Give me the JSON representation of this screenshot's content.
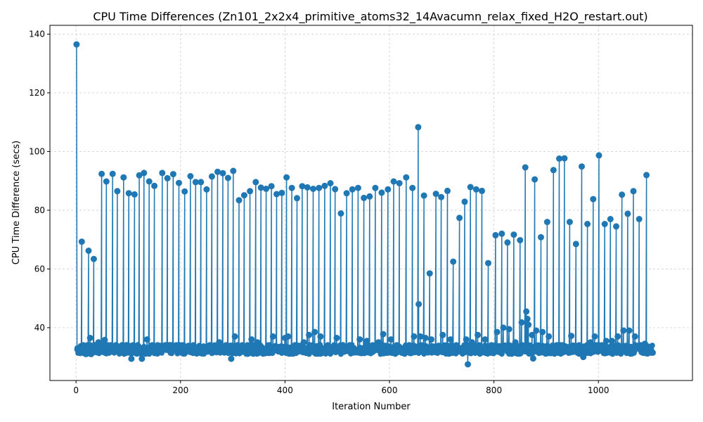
{
  "chart_data": {
    "type": "line",
    "title": "CPU Time Differences (Zn101_2x2x4_primitive_atoms32_14Avacumn_relax_fixed_H2O_restart.out)",
    "xlabel": "Iteration Number",
    "ylabel": "CPU Time Difference (secs)",
    "xlim": [
      -50,
      1180
    ],
    "ylim": [
      22,
      143
    ],
    "xticks": [
      0,
      200,
      400,
      600,
      800,
      1000
    ],
    "yticks": [
      40,
      60,
      80,
      100,
      120,
      140
    ],
    "grid": true,
    "color": "#1f77b4",
    "series": [
      {
        "baseline": 32,
        "points": [
          [
            1,
            136.5
          ],
          [
            3,
            33
          ],
          [
            5,
            32
          ],
          [
            8,
            32.5
          ],
          [
            11,
            69.3
          ],
          [
            14,
            34
          ],
          [
            17,
            33
          ],
          [
            19,
            31
          ],
          [
            22,
            34
          ],
          [
            24,
            66.2
          ],
          [
            27,
            36.5
          ],
          [
            29,
            31
          ],
          [
            32,
            33
          ],
          [
            34,
            63.4
          ],
          [
            37,
            34
          ],
          [
            40,
            33
          ],
          [
            43,
            35
          ],
          [
            46,
            33
          ],
          [
            49,
            92.4
          ],
          [
            52,
            34
          ],
          [
            55,
            35.8
          ],
          [
            58,
            89.8
          ],
          [
            61,
            34
          ],
          [
            63,
            31.5
          ],
          [
            67,
            34
          ],
          [
            70,
            92.4
          ],
          [
            73,
            33
          ],
          [
            76,
            34
          ],
          [
            79,
            86.5
          ],
          [
            82,
            33.5
          ],
          [
            85,
            33
          ],
          [
            88,
            34
          ],
          [
            91,
            91.2
          ],
          [
            94,
            33
          ],
          [
            97,
            33
          ],
          [
            101,
            85.8
          ],
          [
            104,
            33
          ],
          [
            106,
            29.4
          ],
          [
            109,
            34
          ],
          [
            112,
            85.4
          ],
          [
            115,
            33
          ],
          [
            118,
            34
          ],
          [
            121,
            91.9
          ],
          [
            124,
            33
          ],
          [
            126,
            29.4
          ],
          [
            130,
            92.7
          ],
          [
            133,
            33
          ],
          [
            136,
            36
          ],
          [
            140,
            89.8
          ],
          [
            143,
            33
          ],
          [
            146,
            34
          ],
          [
            150,
            88.3
          ],
          [
            153,
            33
          ],
          [
            156,
            34
          ],
          [
            160,
            33
          ],
          [
            165,
            92.7
          ],
          [
            168,
            33
          ],
          [
            171,
            34
          ],
          [
            175,
            90.9
          ],
          [
            178,
            33
          ],
          [
            181,
            31.5
          ],
          [
            186,
            92.3
          ],
          [
            189,
            33
          ],
          [
            192,
            34
          ],
          [
            197,
            89.3
          ],
          [
            200,
            33
          ],
          [
            203,
            34
          ],
          [
            208,
            86.4
          ],
          [
            211,
            33
          ],
          [
            214,
            32
          ],
          [
            219,
            91.6
          ],
          [
            222,
            33
          ],
          [
            225,
            34
          ],
          [
            229,
            89.6
          ],
          [
            232,
            33
          ],
          [
            235,
            32
          ],
          [
            239,
            89.6
          ],
          [
            242,
            33
          ],
          [
            245,
            31.5
          ],
          [
            250,
            87.1
          ],
          [
            253,
            33
          ],
          [
            256,
            34
          ],
          [
            260,
            91.5
          ],
          [
            263,
            33
          ],
          [
            266,
            32
          ],
          [
            271,
            93.1
          ],
          [
            274,
            35
          ],
          [
            277,
            32
          ],
          [
            281,
            92.6
          ],
          [
            284,
            33
          ],
          [
            287,
            34
          ],
          [
            291,
            91
          ],
          [
            294,
            33
          ],
          [
            297,
            29.4
          ],
          [
            301,
            93.4
          ],
          [
            304,
            37
          ],
          [
            307,
            33
          ],
          [
            312,
            83.4
          ],
          [
            315,
            33
          ],
          [
            318,
            34
          ],
          [
            322,
            85.1
          ],
          [
            325,
            33
          ],
          [
            328,
            34
          ],
          [
            333,
            86.5
          ],
          [
            336,
            36
          ],
          [
            339,
            33
          ],
          [
            344,
            89.6
          ],
          [
            347,
            35
          ],
          [
            350,
            33
          ],
          [
            354,
            87.7
          ],
          [
            357,
            33
          ],
          [
            360,
            32
          ],
          [
            364,
            87.3
          ],
          [
            367,
            33
          ],
          [
            370,
            34
          ],
          [
            374,
            88.2
          ],
          [
            377,
            37
          ],
          [
            380,
            33
          ],
          [
            384,
            85.5
          ],
          [
            387,
            33
          ],
          [
            390,
            32
          ],
          [
            394,
            85.9
          ],
          [
            397,
            33
          ],
          [
            400,
            36.5
          ],
          [
            403,
            91.2
          ],
          [
            406,
            37
          ],
          [
            409,
            33
          ],
          [
            413,
            87.6
          ],
          [
            416,
            33
          ],
          [
            419,
            34
          ],
          [
            423,
            84.1
          ],
          [
            426,
            33
          ],
          [
            429,
            32
          ],
          [
            433,
            88.2
          ],
          [
            436,
            35
          ],
          [
            439,
            33
          ],
          [
            443,
            87.8
          ],
          [
            446,
            37.5
          ],
          [
            449,
            33
          ],
          [
            454,
            87.3
          ],
          [
            457,
            38.5
          ],
          [
            460,
            33
          ],
          [
            465,
            87.6
          ],
          [
            468,
            37
          ],
          [
            471,
            33
          ],
          [
            476,
            88.3
          ],
          [
            479,
            33
          ],
          [
            482,
            34
          ],
          [
            487,
            89.2
          ],
          [
            490,
            33
          ],
          [
            493,
            32
          ],
          [
            496,
            87.2
          ],
          [
            499,
            36.5
          ],
          [
            502,
            33
          ],
          [
            507,
            78.9
          ],
          [
            510,
            33
          ],
          [
            513,
            32
          ],
          [
            518,
            85.8
          ],
          [
            521,
            33
          ],
          [
            524,
            34
          ],
          [
            529,
            87.1
          ],
          [
            532,
            33
          ],
          [
            535,
            32
          ],
          [
            540,
            87.6
          ],
          [
            543,
            36
          ],
          [
            546,
            33
          ],
          [
            551,
            84.2
          ],
          [
            554,
            33
          ],
          [
            557,
            35.5
          ],
          [
            562,
            84.7
          ],
          [
            565,
            33
          ],
          [
            568,
            34
          ],
          [
            573,
            87.6
          ],
          [
            576,
            33
          ],
          [
            579,
            35
          ],
          [
            585,
            86
          ],
          [
            588,
            37.8
          ],
          [
            591,
            33
          ],
          [
            597,
            87.1
          ],
          [
            600,
            33
          ],
          [
            603,
            36
          ],
          [
            608,
            89.8
          ],
          [
            611,
            33
          ],
          [
            614,
            34
          ],
          [
            619,
            89.2
          ],
          [
            622,
            33
          ],
          [
            625,
            32
          ],
          [
            632,
            91.2
          ],
          [
            635,
            33
          ],
          [
            638,
            34
          ],
          [
            644,
            87.6
          ],
          [
            647,
            37
          ],
          [
            650,
            33
          ],
          [
            655,
            108.3
          ],
          [
            656,
            48
          ],
          [
            659,
            37
          ],
          [
            662,
            33
          ],
          [
            666,
            85
          ],
          [
            669,
            36.5
          ],
          [
            672,
            33
          ],
          [
            677,
            58.5
          ],
          [
            680,
            36
          ],
          [
            683,
            33
          ],
          [
            689,
            85.6
          ],
          [
            692,
            33
          ],
          [
            695,
            32
          ],
          [
            699,
            84.5
          ],
          [
            702,
            37.5
          ],
          [
            705,
            33
          ],
          [
            711,
            86.6
          ],
          [
            714,
            33
          ],
          [
            717,
            36
          ],
          [
            722,
            62.5
          ],
          [
            725,
            33
          ],
          [
            728,
            34
          ],
          [
            734,
            77.4
          ],
          [
            737,
            33
          ],
          [
            740,
            32
          ],
          [
            744,
            82.9
          ],
          [
            747,
            36
          ],
          [
            750,
            27.5
          ],
          [
            755,
            87.9
          ],
          [
            758,
            35
          ],
          [
            761,
            33
          ],
          [
            766,
            87.1
          ],
          [
            769,
            37.5
          ],
          [
            772,
            33
          ],
          [
            777,
            86.6
          ],
          [
            780,
            33
          ],
          [
            783,
            36
          ],
          [
            789,
            62
          ],
          [
            792,
            33
          ],
          [
            795,
            34
          ],
          [
            803,
            71.5
          ],
          [
            806,
            38.5
          ],
          [
            810,
            33
          ],
          [
            815,
            72
          ],
          [
            818,
            40
          ],
          [
            821,
            33
          ],
          [
            826,
            69
          ],
          [
            829,
            39.5
          ],
          [
            832,
            33
          ],
          [
            838,
            71.7
          ],
          [
            841,
            35
          ],
          [
            844,
            33
          ],
          [
            850,
            69.8
          ],
          [
            853,
            41.8
          ],
          [
            856,
            33
          ],
          [
            860,
            94.6
          ],
          [
            862,
            45.5
          ],
          [
            864,
            43
          ],
          [
            866,
            41
          ],
          [
            868,
            33
          ],
          [
            873,
            37.5
          ],
          [
            875,
            29.5
          ],
          [
            878,
            90.5
          ],
          [
            881,
            39
          ],
          [
            884,
            33
          ],
          [
            890,
            70.8
          ],
          [
            893,
            38.5
          ],
          [
            896,
            33
          ],
          [
            902,
            76
          ],
          [
            905,
            37
          ],
          [
            908,
            33
          ],
          [
            914,
            93.7
          ],
          [
            917,
            33
          ],
          [
            920,
            34
          ],
          [
            925,
            97.6
          ],
          [
            928,
            33
          ],
          [
            931,
            34
          ],
          [
            935,
            97.7
          ],
          [
            938,
            33
          ],
          [
            941,
            32
          ],
          [
            945,
            76
          ],
          [
            948,
            37.2
          ],
          [
            951,
            33
          ],
          [
            957,
            68.5
          ],
          [
            960,
            33
          ],
          [
            963,
            34
          ],
          [
            968,
            94.9
          ],
          [
            971,
            30
          ],
          [
            974,
            33
          ],
          [
            979,
            75.3
          ],
          [
            982,
            33
          ],
          [
            985,
            35
          ],
          [
            990,
            83.8
          ],
          [
            993,
            37
          ],
          [
            996,
            33
          ],
          [
            1001,
            98.7
          ],
          [
            1004,
            33
          ],
          [
            1007,
            34
          ],
          [
            1012,
            75.3
          ],
          [
            1015,
            35.5
          ],
          [
            1018,
            33
          ],
          [
            1023,
            77
          ],
          [
            1026,
            35.5
          ],
          [
            1029,
            33
          ],
          [
            1034,
            74.5
          ],
          [
            1037,
            37
          ],
          [
            1040,
            33
          ],
          [
            1045,
            85.3
          ],
          [
            1048,
            39
          ],
          [
            1051,
            33
          ],
          [
            1056,
            78.8
          ],
          [
            1059,
            39
          ],
          [
            1062,
            33
          ],
          [
            1067,
            86.5
          ],
          [
            1070,
            37
          ],
          [
            1073,
            33
          ],
          [
            1078,
            77
          ],
          [
            1081,
            33
          ],
          [
            1084,
            34
          ],
          [
            1089,
            34.5
          ],
          [
            1092,
            92
          ],
          [
            1095,
            33
          ],
          [
            1098,
            32
          ],
          [
            1101,
            31.5
          ],
          [
            1104,
            31.5
          ]
        ]
      }
    ]
  }
}
